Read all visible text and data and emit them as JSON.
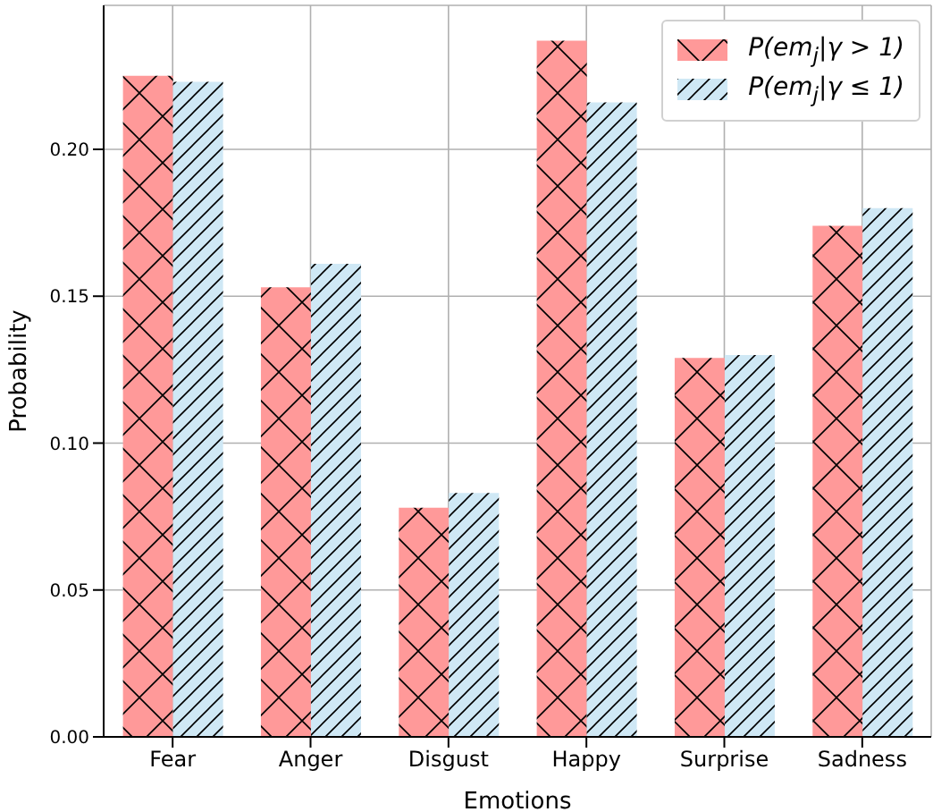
{
  "chart_data": {
    "type": "bar",
    "xlabel": "Emotions",
    "ylabel": "Probability",
    "categories": [
      "Fear",
      "Anger",
      "Disgust",
      "Happy",
      "Surprise",
      "Sadness"
    ],
    "series": [
      {
        "name": "P(em$_{j}$|γ > 1)",
        "color": "#ff9999",
        "values": [
          0.225,
          0.153,
          0.078,
          0.237,
          0.129,
          0.174
        ]
      },
      {
        "name": "P(em$_{j}$|γ ≤ 1)",
        "color": "#cfe8f5",
        "values": [
          0.223,
          0.161,
          0.083,
          0.216,
          0.13,
          0.18
        ]
      }
    ],
    "ylim": [
      0,
      0.249
    ],
    "yticks": [
      {
        "value": 0,
        "label": "0.00"
      },
      {
        "value": 0.05,
        "label": "0.05"
      },
      {
        "value": 0.1,
        "label": "0.10"
      },
      {
        "value": 0.15,
        "label": "0.15"
      },
      {
        "value": 0.2,
        "label": "0.20"
      }
    ],
    "grid": true,
    "legend": "top right"
  }
}
